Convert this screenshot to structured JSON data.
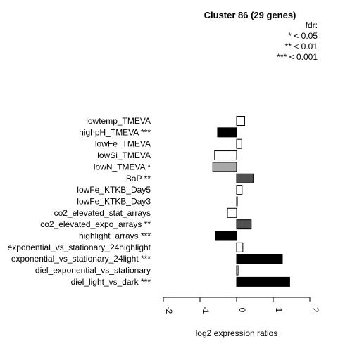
{
  "chart_data": {
    "type": "bar",
    "orientation": "horizontal",
    "title": "Cluster 86 (29 genes)",
    "xlabel": "log2 expression ratios",
    "xlim": [
      -2,
      2
    ],
    "xticks": [
      "-2",
      "-1",
      "0",
      "1",
      "2"
    ],
    "legend": {
      "title": "fdr:",
      "entries": [
        "* < 0.05",
        "** < 0.01",
        "*** < 0.001"
      ],
      "placement": "top-right"
    },
    "categories": [
      "lowtemp_TMEVA",
      "highpH_TMEVA ***",
      "lowFe_TMEVA",
      "lowSi_TMEVA",
      "lowN_TMEVA *",
      "BaP **",
      "lowFe_KTKB_Day5",
      "lowFe_KTKB_Day3",
      "co2_elevated_stat_arrays",
      "co2_elevated_expo_arrays **",
      "highlight_arrays ***",
      "exponential_vs_stationary_24highlight",
      "exponential_vs_stationary_24light ***",
      "diel_exponential_vs_stationary",
      "diel_light_vs_dark ***"
    ],
    "values": [
      0.22,
      -0.52,
      0.14,
      -0.6,
      -0.65,
      0.45,
      0.15,
      0.02,
      -0.25,
      0.4,
      -0.58,
      0.17,
      1.25,
      0.04,
      1.45
    ],
    "fills": [
      "#ffffff",
      "#000000",
      "#ffffff",
      "#ffffff",
      "#a9a9a9",
      "#505050",
      "#ffffff",
      "#ffffff",
      "#ffffff",
      "#505050",
      "#000000",
      "#ffffff",
      "#000000",
      "#ffffff",
      "#000000"
    ]
  }
}
